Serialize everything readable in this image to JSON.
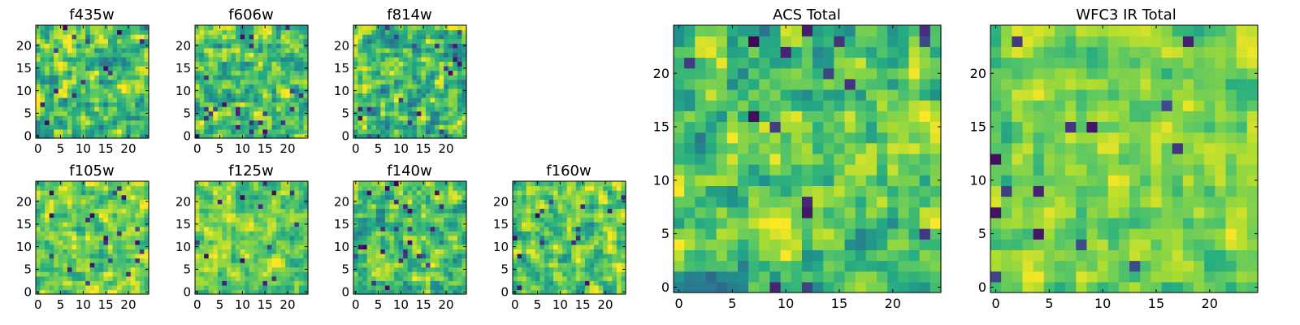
{
  "chart_data": {
    "type": "heatmap",
    "colormap": "viridis",
    "grid": false,
    "value_range": [
      0,
      1
    ],
    "panels": [
      {
        "id": "f435w",
        "title": "f435w",
        "xlim": [
          0,
          24
        ],
        "ylim": [
          0,
          24
        ],
        "xticks": [
          0,
          5,
          10,
          15,
          20
        ],
        "yticks": [
          0,
          5,
          10,
          15,
          20
        ],
        "shape": [
          25,
          25
        ],
        "mean_level": 0.7,
        "spread": 0.5,
        "seed": 11
      },
      {
        "id": "f606w",
        "title": "f606w",
        "xlim": [
          0,
          24
        ],
        "ylim": [
          0,
          24
        ],
        "xticks": [
          0,
          5,
          10,
          15,
          20
        ],
        "yticks": [
          0,
          5,
          10,
          15,
          20
        ],
        "shape": [
          25,
          25
        ],
        "mean_level": 0.72,
        "spread": 0.5,
        "seed": 23
      },
      {
        "id": "f814w",
        "title": "f814w",
        "xlim": [
          0,
          24
        ],
        "ylim": [
          0,
          24
        ],
        "xticks": [
          0,
          5,
          10,
          15,
          20
        ],
        "yticks": [
          0,
          5,
          10,
          15,
          20
        ],
        "shape": [
          25,
          25
        ],
        "mean_level": 0.68,
        "spread": 0.55,
        "seed": 37
      },
      {
        "id": "f105w",
        "title": "f105w",
        "xlim": [
          0,
          24
        ],
        "ylim": [
          0,
          24
        ],
        "xticks": [
          0,
          5,
          10,
          15,
          20
        ],
        "yticks": [
          0,
          5,
          10,
          15,
          20
        ],
        "shape": [
          25,
          25
        ],
        "mean_level": 0.78,
        "spread": 0.4,
        "seed": 41
      },
      {
        "id": "f125w",
        "title": "f125w",
        "xlim": [
          0,
          24
        ],
        "ylim": [
          0,
          24
        ],
        "xticks": [
          0,
          5,
          10,
          15,
          20
        ],
        "yticks": [
          0,
          5,
          10,
          15,
          20
        ],
        "shape": [
          25,
          25
        ],
        "mean_level": 0.78,
        "spread": 0.35,
        "seed": 53
      },
      {
        "id": "f140w",
        "title": "f140w",
        "xlim": [
          0,
          24
        ],
        "ylim": [
          0,
          24
        ],
        "xticks": [
          0,
          5,
          10,
          15,
          20
        ],
        "yticks": [
          0,
          5,
          10,
          15,
          20
        ],
        "shape": [
          25,
          25
        ],
        "mean_level": 0.72,
        "spread": 0.45,
        "seed": 67
      },
      {
        "id": "f160w",
        "title": "f160w",
        "xlim": [
          0,
          24
        ],
        "ylim": [
          0,
          24
        ],
        "xticks": [
          0,
          5,
          10,
          15,
          20
        ],
        "yticks": [
          0,
          5,
          10,
          15,
          20
        ],
        "shape": [
          25,
          25
        ],
        "mean_level": 0.76,
        "spread": 0.45,
        "seed": 79
      },
      {
        "id": "acs-total",
        "title": "ACS Total",
        "xlim": [
          0,
          24
        ],
        "ylim": [
          0,
          24
        ],
        "xticks": [
          0,
          5,
          10,
          15,
          20
        ],
        "yticks": [
          0,
          5,
          10,
          15,
          20
        ],
        "shape": [
          25,
          25
        ],
        "mean_level": 0.72,
        "spread": 0.45,
        "seed": 97
      },
      {
        "id": "wfc3-ir-total",
        "title": "WFC3 IR Total",
        "xlim": [
          0,
          24
        ],
        "ylim": [
          0,
          24
        ],
        "xticks": [
          0,
          5,
          10,
          15,
          20
        ],
        "yticks": [
          0,
          5,
          10,
          15,
          20
        ],
        "shape": [
          25,
          25
        ],
        "mean_level": 0.8,
        "spread": 0.3,
        "seed": 113
      }
    ]
  }
}
